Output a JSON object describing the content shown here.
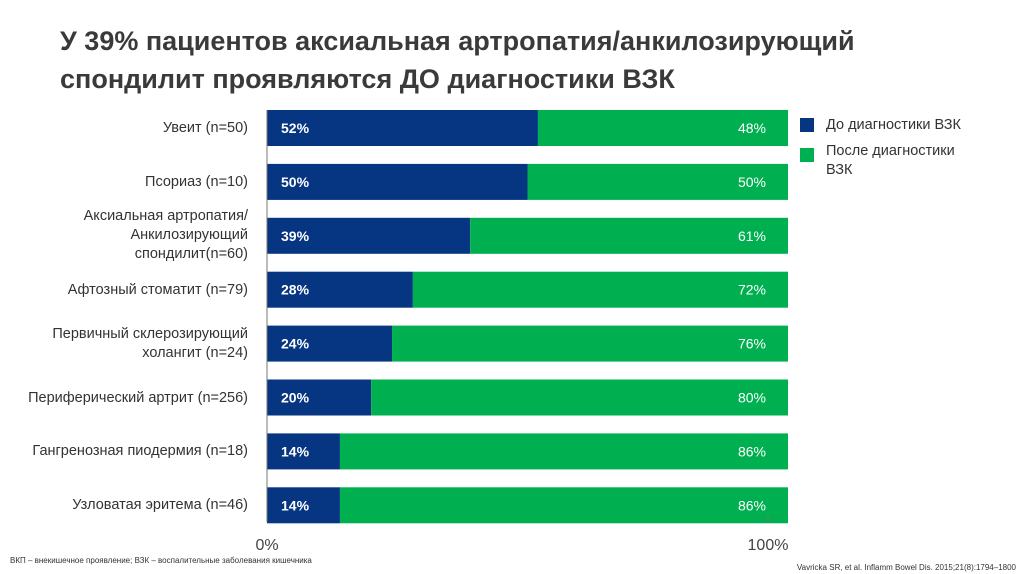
{
  "title": "У 39% пациентов аксиальная артропатия/анкилозирующий спондилит проявляются  ДО диагностики ВЗК",
  "chart_data": {
    "type": "bar",
    "stacked": true,
    "orientation": "horizontal",
    "categories": [
      "Увеит (n=50)",
      "Псориаз (n=10)",
      "Аксиальная артропатия/ Анкилозирующий спондилит(n=60)",
      "Афтозный стоматит (n=79)",
      "Первичный склерозирующий холангит (n=24)",
      "Периферический артрит (n=256)",
      "Гангренозная пиодермия (n=18)",
      "Узловатая эритема (n=46)"
    ],
    "series": [
      {
        "name": "До диагностики ВЗК",
        "color": "#063582",
        "values": [
          52,
          50,
          39,
          28,
          24,
          20,
          14,
          14
        ]
      },
      {
        "name": "После диагностики ВЗК",
        "color": "#00b050",
        "values": [
          48,
          50,
          61,
          72,
          76,
          80,
          86,
          86
        ]
      }
    ],
    "xlim": [
      0,
      100
    ],
    "xticks": [
      "0%",
      "100%"
    ],
    "legend": "top-right"
  },
  "footnote": "ВКП – внекишечное проявление; ВЗК – воспалительные заболевания кишечника",
  "citation": "Vavricka SR, et al. Inflamm Bowel Dis. 2015;21(8):1794–1800"
}
